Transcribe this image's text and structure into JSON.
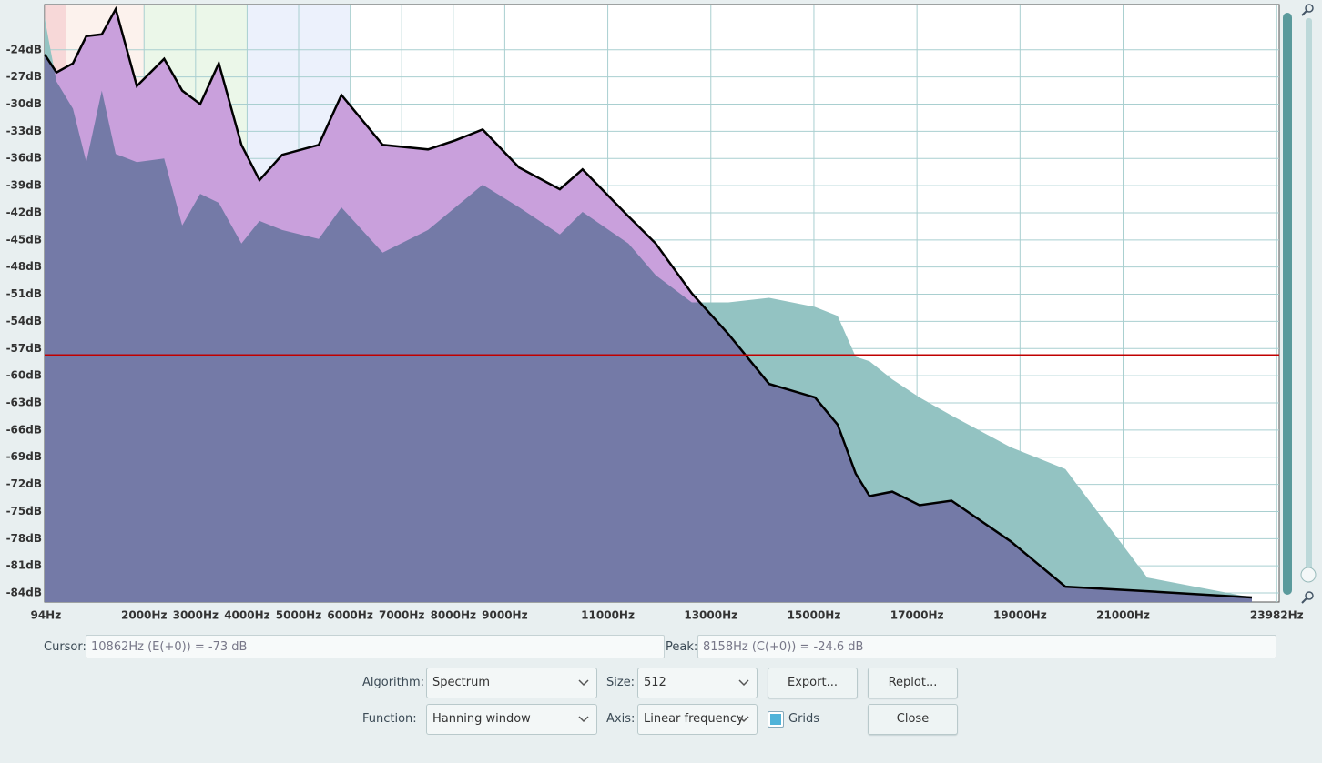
{
  "chart_data": {
    "type": "area",
    "x": [
      70,
      300,
      620,
      880,
      1180,
      1450,
      1860,
      2390,
      2740,
      3090,
      3450,
      3890,
      4240,
      4680,
      5390,
      5830,
      6630,
      7510,
      8040,
      8570,
      9280,
      10070,
      10510,
      11400,
      11930,
      12630,
      13340,
      14130,
      15020,
      15460,
      15810,
      16080,
      16520,
      17050,
      17670,
      18820,
      19880,
      21470,
      23500
    ],
    "series": [
      {
        "color": "#c9a0dc",
        "values": [
          -24.5,
          -26.5,
          -25.5,
          -22.5,
          -22.3,
          -19.5,
          -28.0,
          -25.0,
          -28.5,
          -30.0,
          -25.5,
          -34.5,
          -38.4,
          -35.6,
          -34.5,
          -29.0,
          -34.5,
          -35.0,
          -34.0,
          -32.8,
          -37.0,
          -39.4,
          -37.2,
          -42.4,
          -45.4,
          -50.9,
          -55.4,
          -60.9,
          -62.4,
          -65.4,
          -70.8,
          -73.3,
          -72.8,
          -74.3,
          -73.8,
          -78.3,
          -83.3,
          -83.8,
          -84.5
        ]
      },
      {
        "color": "#93c3c2",
        "values": [
          -20.5,
          -27.5,
          -30.5,
          -36.4,
          -28.5,
          -35.5,
          -36.4,
          -36.0,
          -43.4,
          -39.9,
          -40.9,
          -45.4,
          -42.9,
          -43.9,
          -44.9,
          -41.4,
          -46.4,
          -43.9,
          -41.4,
          -38.9,
          -41.4,
          -44.4,
          -41.9,
          -45.4,
          -48.9,
          -51.9,
          -51.9,
          -51.4,
          -52.4,
          -53.4,
          -57.9,
          -58.4,
          -60.4,
          -62.4,
          -64.4,
          -67.9,
          -70.3,
          -82.3,
          -84.5
        ]
      }
    ],
    "xlim": [
      70,
      24030
    ],
    "ylim": [
      -85,
      -19
    ],
    "xticks": [
      {
        "value": 94,
        "label": "94Hz"
      },
      {
        "value": 2000,
        "label": "2000Hz"
      },
      {
        "value": 3000,
        "label": "3000Hz"
      },
      {
        "value": 4000,
        "label": "4000Hz"
      },
      {
        "value": 5000,
        "label": "5000Hz"
      },
      {
        "value": 6000,
        "label": "6000Hz"
      },
      {
        "value": 7000,
        "label": "7000Hz"
      },
      {
        "value": 8000,
        "label": "8000Hz"
      },
      {
        "value": 9000,
        "label": "9000Hz"
      },
      {
        "value": 11000,
        "label": "11000Hz"
      },
      {
        "value": 13000,
        "label": "13000Hz"
      },
      {
        "value": 15000,
        "label": "15000Hz"
      },
      {
        "value": 17000,
        "label": "17000Hz"
      },
      {
        "value": 19000,
        "label": "19000Hz"
      },
      {
        "value": 21000,
        "label": "21000Hz"
      },
      {
        "value": 23982,
        "label": "23982Hz"
      }
    ],
    "yticks": [
      {
        "value": -24,
        "label": "-24dB"
      },
      {
        "value": -27,
        "label": "-27dB"
      },
      {
        "value": -30,
        "label": "-30dB"
      },
      {
        "value": -33,
        "label": "-33dB"
      },
      {
        "value": -36,
        "label": "-36dB"
      },
      {
        "value": -39,
        "label": "-39dB"
      },
      {
        "value": -42,
        "label": "-42dB"
      },
      {
        "value": -45,
        "label": "-45dB"
      },
      {
        "value": -48,
        "label": "-48dB"
      },
      {
        "value": -51,
        "label": "-51dB"
      },
      {
        "value": -54,
        "label": "-54dB"
      },
      {
        "value": -57,
        "label": "-57dB"
      },
      {
        "value": -60,
        "label": "-60dB"
      },
      {
        "value": -63,
        "label": "-63dB"
      },
      {
        "value": -66,
        "label": "-66dB"
      },
      {
        "value": -69,
        "label": "-69dB"
      },
      {
        "value": -72,
        "label": "-72dB"
      },
      {
        "value": -75,
        "label": "-75dB"
      },
      {
        "value": -78,
        "label": "-78dB"
      },
      {
        "value": -81,
        "label": "-81dB"
      },
      {
        "value": -84,
        "label": "-84dB"
      }
    ],
    "grid": true,
    "hline": {
      "value": -57.7,
      "color": "#c00000"
    }
  },
  "controls": {
    "cursor_label": "Cursor:",
    "cursor_value": "10862Hz (E(+0)) = -73 dB",
    "peak_label": "Peak:",
    "peak_value": "8158Hz (C(+0)) = -24.6 dB",
    "algorithm_label": "Algorithm:",
    "algorithm": "Spectrum",
    "size_label": "Size:",
    "size": "512",
    "export": "Export...",
    "replot": "Replot...",
    "function_label": "Function:",
    "function": "Hanning window",
    "axis_label": "Axis:",
    "axis": "Linear frequency",
    "grids": "Grids",
    "close": "Close"
  }
}
